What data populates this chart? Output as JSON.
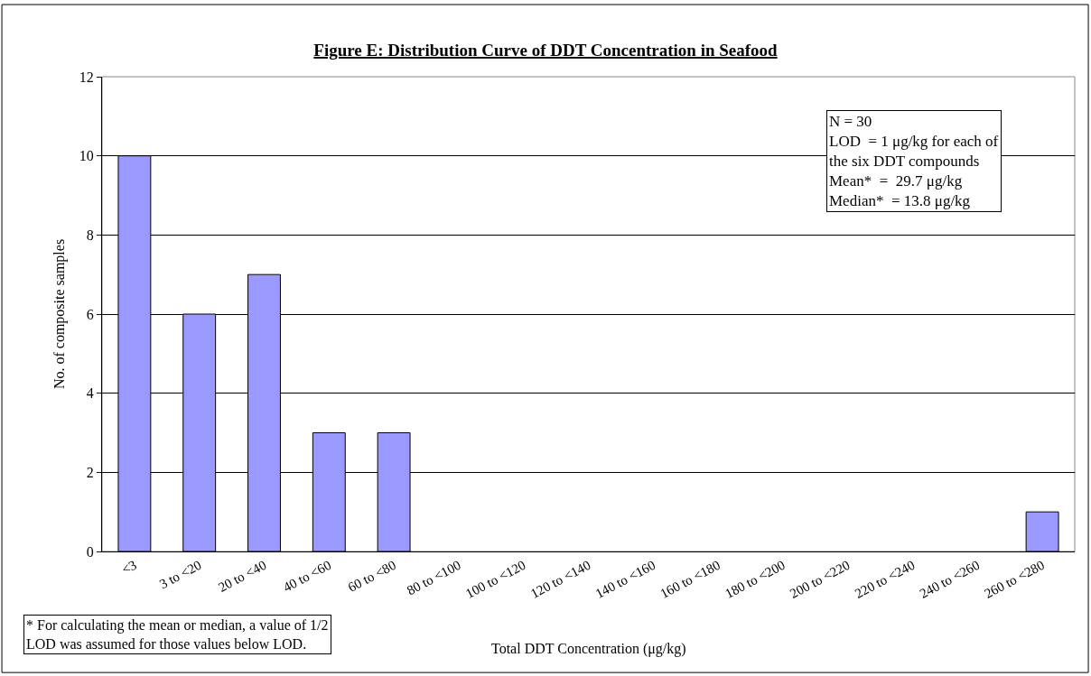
{
  "chart_data": {
    "type": "bar",
    "title": "Figure E: Distribution Curve of DDT Concentration in Seafood",
    "xlabel": "Total DDT Concentration (μg/kg)",
    "ylabel": "No. of composite samples",
    "categories": [
      "<3",
      "3 to <20",
      "20 to <40",
      "40 to <60",
      "60 to <80",
      "80 to <100",
      "100 to <120",
      "120 to <140",
      "140 to <160",
      "160 to <180",
      "180 to <200",
      "200 to <220",
      "220 to <240",
      "240 to <260",
      "260 to <280"
    ],
    "values": [
      10,
      6,
      7,
      3,
      3,
      0,
      0,
      0,
      0,
      0,
      0,
      0,
      0,
      0,
      1
    ],
    "color": "#9999ff",
    "ylim": [
      0,
      12
    ],
    "yticks": [
      0,
      2,
      4,
      6,
      8,
      10,
      12
    ],
    "grid": "y",
    "annotations": [
      "N = 30\nLOD  = 1 μg/kg for each of\nthe six DDT compounds\nMean*  =  29.7 μg/kg\nMedian*  = 13.8 μg/kg",
      "* For calculating the mean or median, a value of 1/2\nLOD was assumed for those values below LOD."
    ]
  }
}
